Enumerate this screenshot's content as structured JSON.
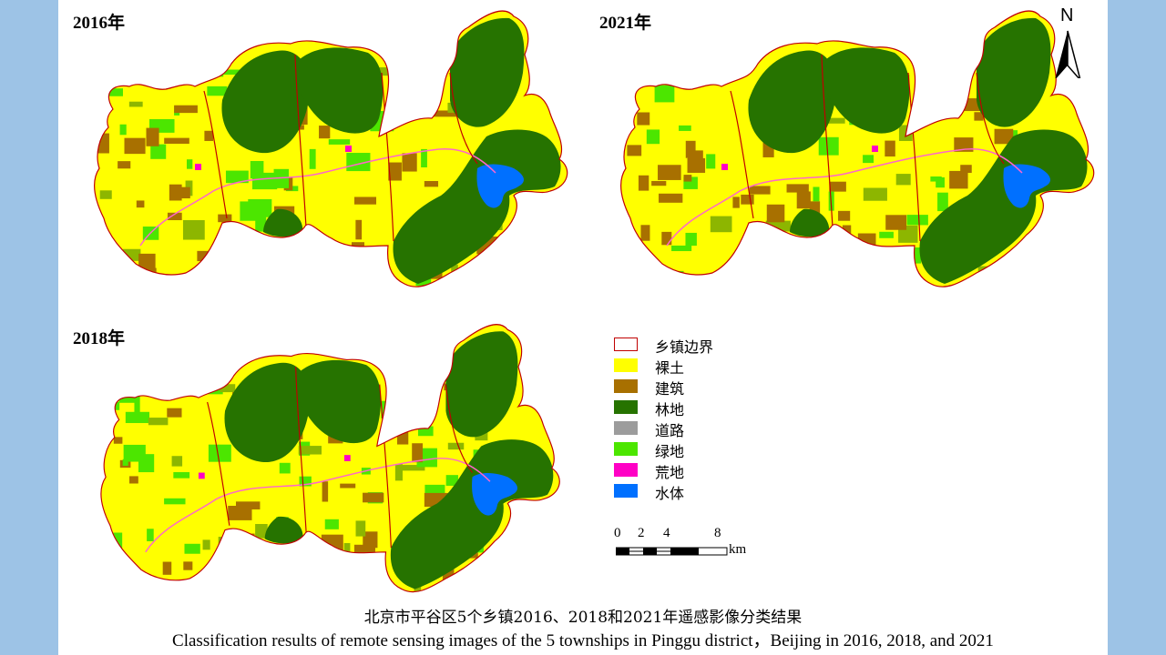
{
  "maps": [
    {
      "year_label": "2016年"
    },
    {
      "year_label": "2021年"
    },
    {
      "year_label": "2018年"
    }
  ],
  "north_arrow": {
    "letter": "N"
  },
  "legend": {
    "items": [
      {
        "label": "乡镇边界",
        "color": "#ffffff",
        "border": "#c00000"
      },
      {
        "label": "裸土",
        "color": "#ffff00"
      },
      {
        "label": "建筑",
        "color": "#a87000"
      },
      {
        "label": "林地",
        "color": "#267300"
      },
      {
        "label": "道路",
        "color": "#9c9c9c"
      },
      {
        "label": "绿地",
        "color": "#4ce600"
      },
      {
        "label": "荒地",
        "color": "#ff00c5"
      },
      {
        "label": "水体",
        "color": "#0070ff"
      }
    ]
  },
  "scale_bar": {
    "ticks": [
      "0",
      "2",
      "4",
      "8"
    ],
    "unit": "km"
  },
  "caption": {
    "zh": "北京市平谷区5个乡镇2016、2018和2021年遥感影像分类结果",
    "en": "Classification results of remote sensing images of the 5 townships in Pinggu district，Beijing in 2016, 2018, and 2021"
  },
  "colors": {
    "background": "#9dc3e6",
    "forest": "#267300",
    "bare_soil": "#ffff00",
    "building": "#a87000",
    "green": "#4ce600",
    "water": "#0070ff",
    "boundary": "#c00000",
    "wasteland": "#ff00c5"
  }
}
